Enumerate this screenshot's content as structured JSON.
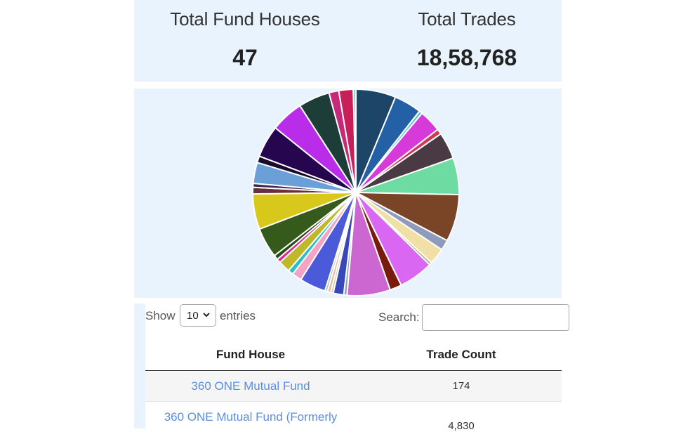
{
  "stats": {
    "fund_houses_label": "Total Fund Houses",
    "fund_houses_value": "47",
    "trades_label": "Total Trades",
    "trades_value": "18,58,768"
  },
  "chart_data": {
    "type": "pie",
    "values": [
      6.1,
      4.2,
      0.5,
      3.4,
      0.8,
      4.1,
      5.6,
      7.2,
      1.6,
      2.5,
      0.4,
      5.3,
      1.8,
      6.6,
      0.5,
      1.6,
      0.4,
      0.5,
      0.4,
      4.0,
      1.5,
      0.8,
      1.8,
      0.6,
      0.7,
      4.6,
      5.4,
      1.0,
      0.6,
      3.2,
      1.0,
      4.9,
      5.0,
      4.8,
      1.5,
      2.2,
      0.4
    ],
    "colors": [
      "#1c4568",
      "#2360a5",
      "#5ac8d8",
      "#d63ad9",
      "#cc3a57",
      "#4a3a44",
      "#6ddba2",
      "#7a4427",
      "#8e9bbd",
      "#f1dfa6",
      "#a3a07a",
      "#d967f2",
      "#7a1a0c",
      "#cc66d0",
      "#8aa2bc",
      "#3848b8",
      "#c8d3a0",
      "#f0b3a0",
      "#a8c8b0",
      "#4a5ad8",
      "#f5a3c4",
      "#28c0c8",
      "#bfb828",
      "#e0258f",
      "#2a4a14",
      "#365a1c",
      "#d9c81c",
      "#6c2e3e",
      "#3c2a56",
      "#6a9fd8",
      "#1a0a2c",
      "#26064f",
      "#b92cea",
      "#1d3e38",
      "#c8287a",
      "#c81e5a",
      "#5ad8d0"
    ]
  },
  "table": {
    "show_label": "Show",
    "length_value": "10",
    "entries_label": "entries",
    "search_label": "Search:",
    "search_value": "",
    "col_fund_house": "Fund House",
    "col_trade_count": "Trade Count",
    "rows": [
      {
        "fund_house": "360 ONE Mutual Fund",
        "trade_count": "174"
      },
      {
        "fund_house": "360 ONE Mutual Fund (Formerly",
        "trade_count": "4,830"
      }
    ]
  }
}
